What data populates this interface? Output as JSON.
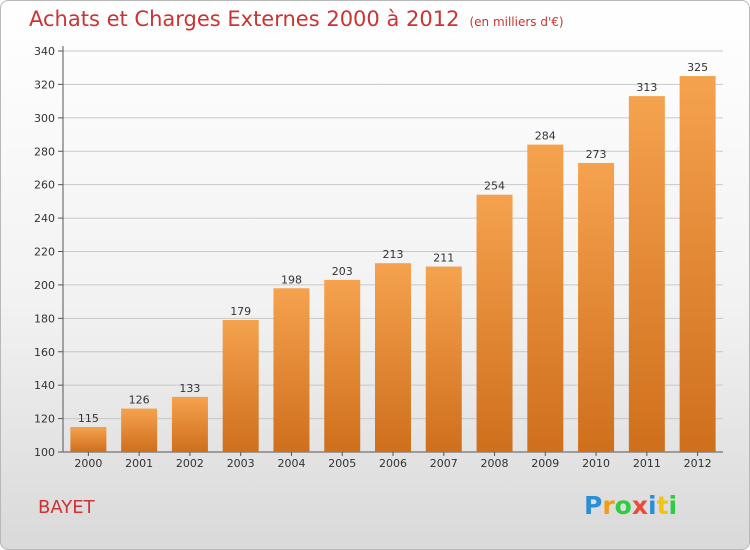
{
  "title": "Achats et Charges Externes 2000 à 2012",
  "subtitle": "(en milliers d'€)",
  "commune": "BAYET",
  "logo": {
    "letters": [
      "P",
      "r",
      "o",
      "x",
      "i",
      "t",
      "i"
    ],
    "colors": [
      "#2b8fd8",
      "#f39c12",
      "#2ecc40",
      "#e74c3c",
      "#2b8fd8",
      "#f1c40f",
      "#2ecc40"
    ]
  },
  "colors": {
    "bar_top": "#f5a24e",
    "bar_bottom": "#cf6f1c",
    "title": "#cc3333"
  },
  "chart_data": {
    "type": "bar",
    "title": "Achats et Charges Externes 2000 à 2012",
    "subtitle": "(en milliers d'€)",
    "categories": [
      "2000",
      "2001",
      "2002",
      "2003",
      "2004",
      "2005",
      "2006",
      "2007",
      "2008",
      "2009",
      "2010",
      "2011",
      "2012"
    ],
    "values": [
      115,
      126,
      133,
      179,
      198,
      203,
      213,
      211,
      254,
      284,
      273,
      313,
      325
    ],
    "ylim": [
      100,
      340
    ],
    "yticks": [
      100,
      120,
      140,
      160,
      180,
      200,
      220,
      240,
      260,
      280,
      300,
      320,
      340
    ],
    "grid": true,
    "legend": "none"
  }
}
